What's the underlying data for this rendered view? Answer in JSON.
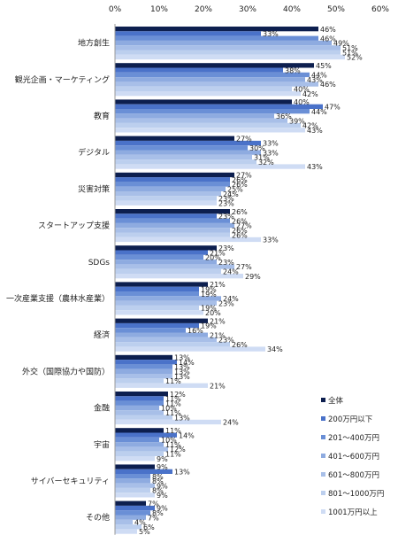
{
  "chart_data": {
    "type": "bar",
    "orientation": "horizontal",
    "title": "",
    "xlabel": "",
    "ylabel": "",
    "xlim": [
      0,
      60
    ],
    "x_ticks": [
      "0%",
      "10%",
      "20%",
      "30%",
      "40%",
      "50%",
      "60%"
    ],
    "x_tick_values": [
      0,
      10,
      20,
      30,
      40,
      50,
      60
    ],
    "value_suffix": "%",
    "grid": false,
    "legend_position": "right",
    "categories": [
      "地方創生",
      "観光企画・マーケティング",
      "教育",
      "デジタル",
      "災害対策",
      "スタートアップ支援",
      "SDGs",
      "一次産業支援（農林水産業）",
      "経済",
      "外交（国際協力や国防）",
      "金融",
      "宇宙",
      "サイバーセキュリティ",
      "その他"
    ],
    "series": [
      {
        "name": "全体",
        "color": "#0d1f4f",
        "values": [
          46,
          45,
          40,
          27,
          27,
          26,
          23,
          21,
          21,
          13,
          12,
          11,
          9,
          7
        ]
      },
      {
        "name": "200万円以下",
        "color": "#4a72c9",
        "values": [
          33,
          38,
          47,
          33,
          26,
          23,
          21,
          19,
          19,
          14,
          11,
          14,
          13,
          9
        ]
      },
      {
        "name": "201～400万円",
        "color": "#6a8fd6",
        "values": [
          46,
          44,
          44,
          30,
          26,
          26,
          20,
          19,
          16,
          13,
          11,
          10,
          8,
          8
        ]
      },
      {
        "name": "401～600万円",
        "color": "#8eabe0",
        "values": [
          49,
          43,
          36,
          33,
          25,
          27,
          23,
          24,
          21,
          13,
          10,
          11,
          8,
          7
        ]
      },
      {
        "name": "601～800万円",
        "color": "#a8bfe8",
        "values": [
          51,
          46,
          39,
          31,
          24,
          26,
          27,
          23,
          23,
          13,
          11,
          12,
          9,
          4
        ]
      },
      {
        "name": "801～1000万円",
        "color": "#bccfee",
        "values": [
          51,
          40,
          42,
          32,
          23,
          26,
          24,
          19,
          26,
          11,
          13,
          11,
          8,
          6
        ]
      },
      {
        "name": "1001万円以上",
        "color": "#cfdcf4",
        "values": [
          52,
          42,
          43,
          43,
          23,
          33,
          29,
          20,
          34,
          21,
          24,
          9,
          9,
          5
        ]
      }
    ]
  }
}
